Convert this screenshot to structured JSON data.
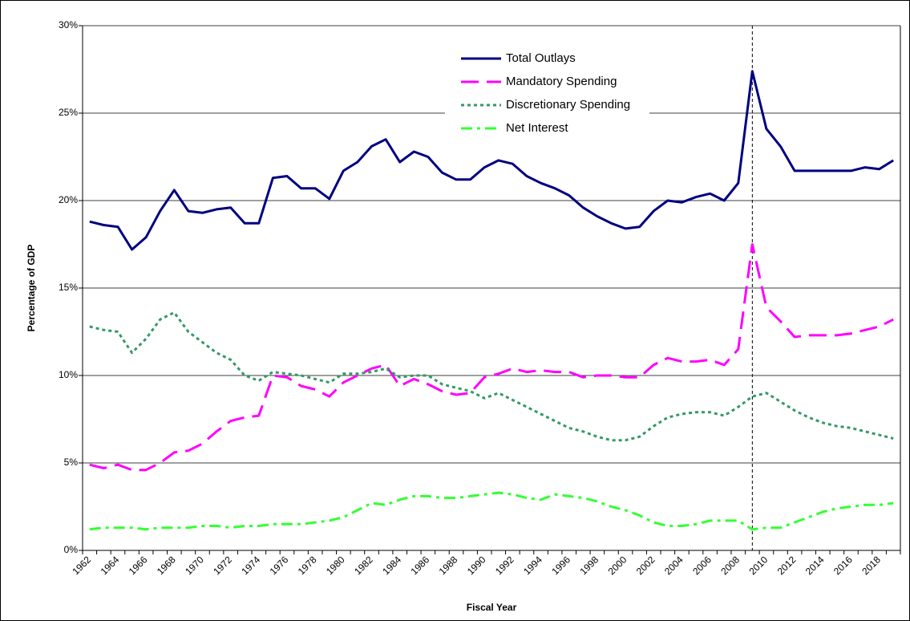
{
  "chart_data": {
    "type": "line",
    "ylabel": "Percentage of GDP",
    "xlabel": "Fiscal Year",
    "categories": [
      "1962",
      null,
      "1964",
      null,
      "1966",
      null,
      "1968",
      null,
      "1970",
      null,
      "1972",
      null,
      "1974",
      null,
      "1976",
      null,
      "1978",
      null,
      "1980",
      null,
      "1982",
      null,
      "1984",
      null,
      "1986",
      null,
      "1988",
      null,
      "1990",
      null,
      "1992",
      null,
      "1994",
      null,
      "1996",
      null,
      "1998",
      null,
      "2000",
      null,
      "2002",
      null,
      "2004",
      null,
      "2006",
      null,
      "2008",
      null,
      "2010",
      null,
      "2012",
      null,
      "2014",
      null,
      "2016",
      null,
      "2018",
      null
    ],
    "series": [
      {
        "name": "Total Outlays",
        "color": "#000080",
        "line_style": "solid",
        "values": [
          18.8,
          18.6,
          18.5,
          17.2,
          17.9,
          19.4,
          20.6,
          19.4,
          19.3,
          19.5,
          19.6,
          18.7,
          18.7,
          21.3,
          21.4,
          20.7,
          20.7,
          20.1,
          21.7,
          22.2,
          23.1,
          23.5,
          22.2,
          22.8,
          22.5,
          21.6,
          21.2,
          21.2,
          21.9,
          22.3,
          22.1,
          21.4,
          21.0,
          20.7,
          20.3,
          19.6,
          19.1,
          18.7,
          18.4,
          18.5,
          19.4,
          20.0,
          19.9,
          20.2,
          20.4,
          20.0,
          21.0,
          27.4,
          24.1,
          23.1,
          21.7,
          21.7,
          21.7,
          21.7,
          21.7,
          21.9,
          21.8,
          22.3
        ]
      },
      {
        "name": "Mandatory Spending",
        "color": "#ff00ff",
        "line_style": "dashed",
        "values": [
          4.9,
          4.7,
          4.9,
          4.6,
          4.6,
          5.0,
          5.6,
          5.7,
          6.1,
          6.8,
          7.4,
          7.6,
          7.7,
          10.0,
          9.9,
          9.4,
          9.2,
          8.8,
          9.6,
          10.0,
          10.4,
          10.6,
          9.4,
          9.8,
          9.5,
          9.1,
          8.9,
          9.0,
          9.9,
          10.1,
          10.4,
          10.2,
          10.3,
          10.2,
          10.2,
          9.9,
          10.0,
          10.0,
          9.9,
          9.9,
          10.6,
          11.0,
          10.8,
          10.8,
          10.9,
          10.6,
          11.5,
          17.5,
          13.9,
          13.1,
          12.2,
          12.3,
          12.3,
          12.3,
          12.4,
          12.6,
          12.8,
          13.2
        ]
      },
      {
        "name": "Discretionary Spending",
        "color": "#339966",
        "line_style": "dotted",
        "values": [
          12.8,
          12.6,
          12.5,
          11.3,
          12.1,
          13.2,
          13.6,
          12.5,
          11.9,
          11.3,
          10.9,
          10.0,
          9.7,
          10.2,
          10.1,
          10.0,
          9.8,
          9.6,
          10.1,
          10.1,
          10.2,
          10.4,
          9.9,
          10.0,
          10.0,
          9.5,
          9.3,
          9.1,
          8.7,
          9.0,
          8.6,
          8.2,
          7.8,
          7.4,
          7.0,
          6.8,
          6.5,
          6.3,
          6.3,
          6.5,
          7.1,
          7.6,
          7.8,
          7.9,
          7.9,
          7.7,
          8.2,
          8.8,
          9.0,
          8.5,
          8.0,
          7.6,
          7.3,
          7.1,
          7.0,
          6.8,
          6.6,
          6.4
        ]
      },
      {
        "name": "Net Interest",
        "color": "#33ff33",
        "line_style": "dashdot",
        "values": [
          1.2,
          1.3,
          1.3,
          1.3,
          1.2,
          1.3,
          1.3,
          1.3,
          1.4,
          1.4,
          1.3,
          1.4,
          1.4,
          1.5,
          1.5,
          1.5,
          1.6,
          1.7,
          1.9,
          2.3,
          2.7,
          2.6,
          2.9,
          3.1,
          3.1,
          3.0,
          3.0,
          3.1,
          3.2,
          3.3,
          3.2,
          3.0,
          2.9,
          3.2,
          3.1,
          3.0,
          2.8,
          2.5,
          2.3,
          2.0,
          1.6,
          1.4,
          1.4,
          1.5,
          1.7,
          1.7,
          1.7,
          1.2,
          1.3,
          1.3,
          1.6,
          1.9,
          2.2,
          2.4,
          2.5,
          2.6,
          2.6,
          2.7
        ]
      }
    ],
    "ylim": [
      0,
      30
    ],
    "yticks": [
      {
        "value": 0,
        "label": "0%"
      },
      {
        "value": 5,
        "label": "5%"
      },
      {
        "value": 10,
        "label": "10%"
      },
      {
        "value": 15,
        "label": "15%"
      },
      {
        "value": 20,
        "label": "20%"
      },
      {
        "value": 25,
        "label": "25%"
      },
      {
        "value": 30,
        "label": "30%"
      }
    ],
    "grid": true,
    "legend": "top"
  }
}
